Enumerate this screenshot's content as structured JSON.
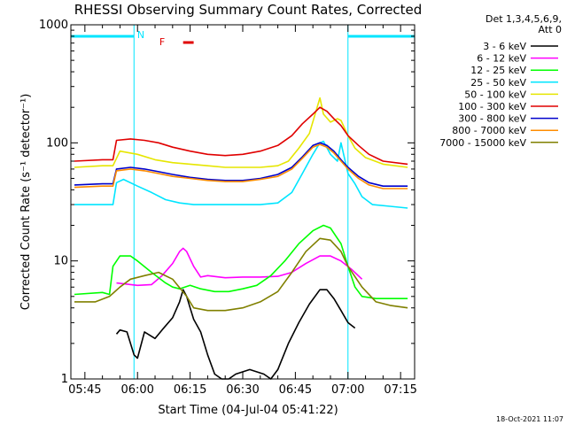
{
  "figure": {
    "title": "RHESSI Observing Summary Count Rates, Corrected",
    "timestamp": "18-Oct-2021 11:07"
  },
  "legend": {
    "header_line1": "Det 1,3,4,5,6,9,",
    "header_line2": "Att 0"
  },
  "annotations": {
    "night_flag": "N",
    "flare_flag": "F"
  },
  "chart_data": {
    "type": "line",
    "title": "RHESSI Observing Summary Count Rates, Corrected",
    "xlabel": "Start Time (04-Jul-04 05:41:22)",
    "ylabel": "Corrected Count Rate (s⁻¹ detector⁻¹)",
    "x_unit": "UT (HH:MM), 04-Jul-2004",
    "x_range": [
      "05:41",
      "07:19"
    ],
    "yscale": "log",
    "ylim": [
      1,
      1000
    ],
    "xticks": [
      "05:45",
      "06:00",
      "06:15",
      "06:30",
      "06:45",
      "07:00",
      "07:15"
    ],
    "yticks": [
      "1",
      "10",
      "100",
      "1000"
    ],
    "grid": false,
    "legend_position": "right",
    "colors": {
      "night_band": "#00e5ff",
      "flare_flag": "#e00000",
      "axes": "#000000"
    },
    "night_intervals": [
      {
        "start": "05:41",
        "end": "05:59"
      },
      {
        "start": "07:00",
        "end": "07:19"
      }
    ],
    "flare_flag_interval": {
      "start": "06:13",
      "end": "06:16"
    },
    "series": [
      {
        "name": "3 - 6 keV",
        "color": "#000000",
        "x": [
          "05:54",
          "05:55",
          "05:57",
          "05:59",
          "06:00",
          "06:02",
          "06:05",
          "06:07",
          "06:10",
          "06:12",
          "06:13",
          "06:14",
          "06:15",
          "06:16",
          "06:18",
          "06:20",
          "06:22",
          "06:24",
          "06:26",
          "06:28",
          "06:32",
          "06:36",
          "06:38",
          "06:40",
          "06:43",
          "06:46",
          "06:49",
          "06:52",
          "06:54",
          "06:56",
          "06:58",
          "07:00",
          "07:02"
        ],
        "values": [
          2.4,
          2.6,
          2.5,
          1.6,
          1.5,
          2.5,
          2.2,
          2.6,
          3.3,
          4.5,
          5.7,
          5.0,
          4.0,
          3.2,
          2.5,
          1.6,
          1.1,
          1.0,
          1.0,
          1.1,
          1.2,
          1.1,
          1.0,
          1.2,
          2.0,
          3.0,
          4.3,
          5.7,
          5.7,
          4.8,
          3.8,
          3.0,
          2.7
        ]
      },
      {
        "name": "6 - 12 keV",
        "color": "#ff00ff",
        "x": [
          "05:54",
          "06:00",
          "06:04",
          "06:07",
          "06:10",
          "06:12",
          "06:13",
          "06:14",
          "06:16",
          "06:18",
          "06:20",
          "06:25",
          "06:30",
          "06:35",
          "06:40",
          "06:44",
          "06:48",
          "06:52",
          "06:55",
          "06:58",
          "07:01",
          "07:04"
        ],
        "values": [
          6.5,
          6.2,
          6.3,
          7.5,
          9.5,
          12.0,
          12.8,
          12.0,
          9.0,
          7.3,
          7.5,
          7.2,
          7.3,
          7.3,
          7.4,
          8.0,
          9.5,
          11.0,
          11.0,
          10.0,
          8.5,
          7.0
        ]
      },
      {
        "name": "12 - 25 keV",
        "color": "#00ff00",
        "x": [
          "05:42",
          "05:50",
          "05:52",
          "05:53",
          "05:55",
          "05:58",
          "06:00",
          "06:04",
          "06:08",
          "06:10",
          "06:12",
          "06:15",
          "06:18",
          "06:22",
          "06:26",
          "06:30",
          "06:34",
          "06:38",
          "06:42",
          "06:46",
          "06:50",
          "06:53",
          "06:55",
          "06:58",
          "07:00",
          "07:02",
          "07:04",
          "07:08",
          "07:12",
          "07:17"
        ],
        "values": [
          5.2,
          5.4,
          5.2,
          9.0,
          11.0,
          11.0,
          10.0,
          8.0,
          6.5,
          6.0,
          5.8,
          6.2,
          5.8,
          5.5,
          5.5,
          5.8,
          6.2,
          7.5,
          10.0,
          14.0,
          18.0,
          20.0,
          19.0,
          14.0,
          9.0,
          6.0,
          5.0,
          4.8,
          4.8,
          4.8
        ]
      },
      {
        "name": "25 - 50 keV",
        "color": "#00e5ff",
        "x": [
          "05:42",
          "05:50",
          "05:53",
          "05:54",
          "05:56",
          "06:00",
          "06:04",
          "06:08",
          "06:12",
          "06:16",
          "06:20",
          "06:25",
          "06:30",
          "06:35",
          "06:40",
          "06:44",
          "06:47",
          "06:50",
          "06:52",
          "06:53",
          "06:55",
          "06:57",
          "06:58",
          "07:00",
          "07:02",
          "07:04",
          "07:07",
          "07:12",
          "07:17"
        ],
        "values": [
          30,
          30,
          30,
          46,
          49,
          43,
          38,
          33,
          31,
          30,
          30,
          30,
          30,
          30,
          31,
          38,
          55,
          80,
          100,
          103,
          80,
          70,
          100,
          55,
          45,
          35,
          30,
          29,
          28
        ]
      },
      {
        "name": "50 - 100 keV",
        "color": "#e6e600",
        "x": [
          "05:42",
          "05:50",
          "05:53",
          "05:55",
          "06:00",
          "06:05",
          "06:10",
          "06:15",
          "06:20",
          "06:25",
          "06:30",
          "06:35",
          "06:40",
          "06:43",
          "06:46",
          "06:49",
          "06:51",
          "06:52",
          "06:53",
          "06:55",
          "06:57",
          "06:58",
          "07:00",
          "07:02",
          "07:05",
          "07:10",
          "07:17"
        ],
        "values": [
          62,
          64,
          64,
          85,
          80,
          72,
          68,
          66,
          64,
          62,
          62,
          62,
          64,
          70,
          90,
          120,
          190,
          240,
          175,
          150,
          160,
          155,
          115,
          90,
          75,
          66,
          62
        ]
      },
      {
        "name": "100 - 300 keV",
        "color": "#e00000",
        "x": [
          "05:42",
          "05:50",
          "05:53",
          "05:54",
          "05:58",
          "06:02",
          "06:06",
          "06:10",
          "06:15",
          "06:20",
          "06:25",
          "06:30",
          "06:35",
          "06:40",
          "06:44",
          "06:47",
          "06:50",
          "06:52",
          "06:54",
          "06:56",
          "06:58",
          "07:00",
          "07:03",
          "07:06",
          "07:10",
          "07:17"
        ],
        "values": [
          70,
          72,
          72,
          105,
          108,
          105,
          100,
          92,
          85,
          80,
          78,
          80,
          85,
          95,
          115,
          145,
          175,
          200,
          185,
          160,
          140,
          115,
          95,
          80,
          70,
          66
        ]
      },
      {
        "name": "300 - 800 keV",
        "color": "#0000cc",
        "x": [
          "05:42",
          "05:50",
          "05:53",
          "05:54",
          "05:58",
          "06:02",
          "06:06",
          "06:10",
          "06:15",
          "06:20",
          "06:25",
          "06:30",
          "06:35",
          "06:40",
          "06:44",
          "06:47",
          "06:50",
          "06:52",
          "06:54",
          "06:56",
          "06:58",
          "07:00",
          "07:03",
          "07:06",
          "07:10",
          "07:17"
        ],
        "values": [
          44,
          45,
          45,
          60,
          62,
          60,
          57,
          54,
          51,
          49,
          48,
          48,
          50,
          54,
          62,
          76,
          95,
          100,
          95,
          85,
          72,
          62,
          52,
          46,
          43,
          43
        ]
      },
      {
        "name": "800 - 7000 keV",
        "color": "#ff8c00",
        "x": [
          "05:42",
          "05:50",
          "05:53",
          "05:54",
          "05:58",
          "06:02",
          "06:06",
          "06:10",
          "06:15",
          "06:20",
          "06:25",
          "06:30",
          "06:35",
          "06:40",
          "06:44",
          "06:47",
          "06:50",
          "06:52",
          "06:54",
          "06:56",
          "06:58",
          "07:00",
          "07:03",
          "07:06",
          "07:10",
          "07:17"
        ],
        "values": [
          42,
          43,
          43,
          58,
          60,
          58,
          55,
          52,
          50,
          48,
          47,
          47,
          49,
          52,
          60,
          74,
          92,
          97,
          92,
          82,
          70,
          60,
          50,
          44,
          41,
          41
        ]
      },
      {
        "name": "7000 - 15000 keV",
        "color": "#808000",
        "x": [
          "05:42",
          "05:48",
          "05:52",
          "05:55",
          "05:58",
          "06:02",
          "06:06",
          "06:10",
          "06:14",
          "06:16",
          "06:20",
          "06:25",
          "06:30",
          "06:35",
          "06:40",
          "06:44",
          "06:48",
          "06:52",
          "06:55",
          "06:58",
          "07:00",
          "07:04",
          "07:08",
          "07:12",
          "07:17"
        ],
        "values": [
          4.5,
          4.5,
          5.0,
          6.0,
          7.0,
          7.5,
          8.0,
          7.0,
          5.0,
          4.0,
          3.8,
          3.8,
          4.0,
          4.5,
          5.5,
          8.0,
          12.0,
          15.5,
          15.0,
          12.0,
          9.0,
          6.0,
          4.5,
          4.2,
          4.0
        ]
      }
    ]
  }
}
